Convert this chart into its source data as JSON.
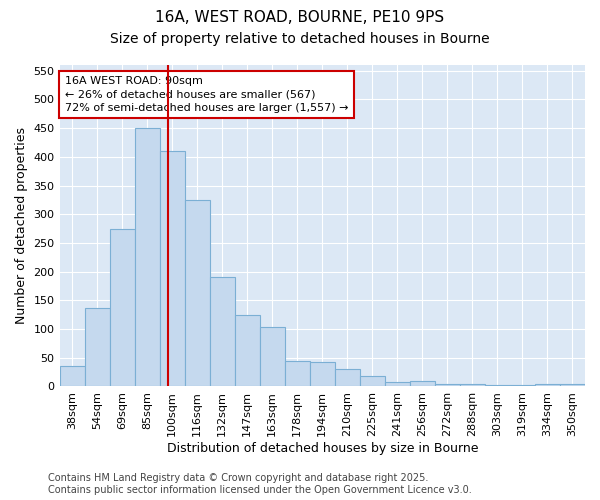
{
  "title1": "16A, WEST ROAD, BOURNE, PE10 9PS",
  "title2": "Size of property relative to detached houses in Bourne",
  "xlabel": "Distribution of detached houses by size in Bourne",
  "ylabel": "Number of detached properties",
  "categories": [
    "38sqm",
    "54sqm",
    "69sqm",
    "85sqm",
    "100sqm",
    "116sqm",
    "132sqm",
    "147sqm",
    "163sqm",
    "178sqm",
    "194sqm",
    "210sqm",
    "225sqm",
    "241sqm",
    "256sqm",
    "272sqm",
    "288sqm",
    "303sqm",
    "319sqm",
    "334sqm",
    "350sqm"
  ],
  "values": [
    35,
    137,
    275,
    450,
    410,
    325,
    190,
    125,
    103,
    45,
    43,
    30,
    18,
    8,
    9,
    5,
    4,
    3,
    3,
    5,
    5
  ],
  "bar_color": "#c5d9ee",
  "bar_edge_color": "#7bafd4",
  "ylim": [
    0,
    560
  ],
  "yticks": [
    0,
    50,
    100,
    150,
    200,
    250,
    300,
    350,
    400,
    450,
    500,
    550
  ],
  "red_line_x": 3.82,
  "annotation_line1": "16A WEST ROAD: 90sqm",
  "annotation_line2": "← 26% of detached houses are smaller (567)",
  "annotation_line3": "72% of semi-detached houses are larger (1,557) →",
  "annotation_box_color": "#ffffff",
  "annotation_border_color": "#cc0000",
  "footer_text": "Contains HM Land Registry data © Crown copyright and database right 2025.\nContains public sector information licensed under the Open Government Licence v3.0.",
  "figure_bg": "#ffffff",
  "plot_bg": "#dce8f5",
  "grid_color": "#ffffff",
  "title_fontsize": 11,
  "subtitle_fontsize": 10,
  "tick_fontsize": 8,
  "label_fontsize": 9,
  "footer_fontsize": 7,
  "annotation_fontsize": 8
}
